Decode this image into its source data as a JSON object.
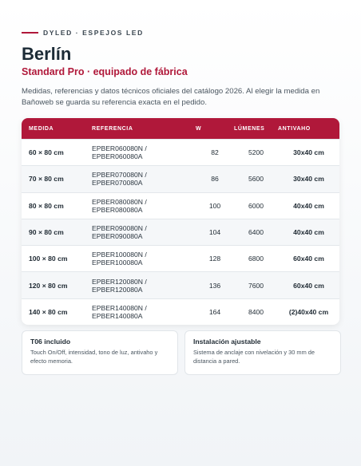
{
  "header": {
    "eyebrow": "DYLED · ESPEJOS LED",
    "title": "Berlín",
    "subtitle": "Standard Pro · equipado de fábrica",
    "description": "Medidas, referencias y datos técnicos oficiales del catálogo 2026. Al elegir la medida en Bañoweb se guarda su referencia exacta en el pedido."
  },
  "table": {
    "columns": [
      "MEDIDA",
      "REFERENCIA",
      "W",
      "LÚMENES",
      "ANTIVAHO"
    ],
    "rows": [
      [
        "60 × 80 cm",
        "EPBER060080N / EPBER060080A",
        82,
        5200,
        "30x40 cm"
      ],
      [
        "70 × 80 cm",
        "EPBER070080N / EPBER070080A",
        86,
        5600,
        "30x40 cm"
      ],
      [
        "80 × 80 cm",
        "EPBER080080N / EPBER080080A",
        100,
        6000,
        "40x40 cm"
      ],
      [
        "90 × 80 cm",
        "EPBER090080N / EPBER090080A",
        104,
        6400,
        "40x40 cm"
      ],
      [
        "100 × 80 cm",
        "EPBER100080N / EPBER100080A",
        128,
        6800,
        "60x40 cm"
      ],
      [
        "120 × 80 cm",
        "EPBER120080N / EPBER120080A",
        136,
        7600,
        "60x40 cm"
      ],
      [
        "140 × 80 cm",
        "EPBER140080N / EPBER140080A",
        164,
        8400,
        "(2)40x40 cm"
      ]
    ]
  },
  "cards": [
    {
      "title": "T06 incluido",
      "text": "Touch On/Off, intensidad, tono de luz, antivaho y efecto memoria."
    },
    {
      "title": "Instalación ajustable",
      "text": "Sistema de anclaje con nivelación y 30 mm de distancia a pared."
    }
  ]
}
